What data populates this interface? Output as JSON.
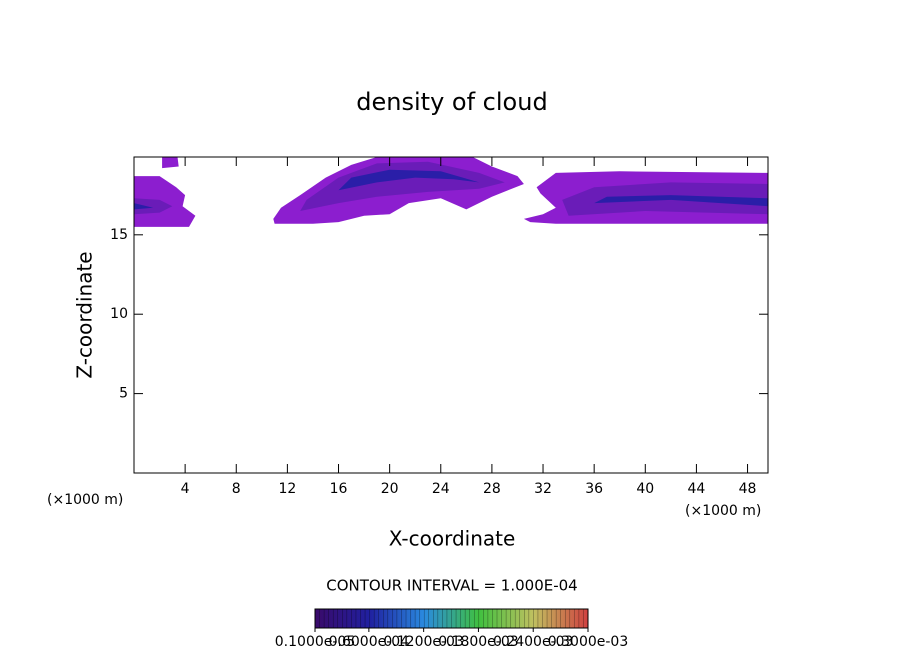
{
  "chart_data": {
    "type": "contour",
    "title": "density of cloud",
    "xlabel": "X-coordinate",
    "ylabel": "Z-coordinate",
    "x_unit": "(×1000 m)",
    "y_unit": "(×1000 m)",
    "xlim": [
      0,
      49.6
    ],
    "ylim": [
      0,
      19.9
    ],
    "xticks": [
      4,
      8,
      12,
      16,
      20,
      24,
      28,
      32,
      36,
      40,
      44,
      48
    ],
    "yticks": [
      5,
      10,
      15
    ],
    "regions": [
      {
        "color": "#8c1ecf",
        "x": [
          0,
          4.3,
          4.8,
          3.8,
          4,
          3.3,
          2,
          0
        ],
        "z": [
          15.5,
          15.5,
          16.2,
          16.8,
          17.5,
          18.0,
          18.7,
          18.7
        ]
      },
      {
        "color": "#6a1cb8",
        "x": [
          0,
          2,
          3,
          2,
          0
        ],
        "z": [
          16.3,
          16.4,
          16.8,
          17.2,
          17.3
        ]
      },
      {
        "color": "#2a1ea8",
        "x": [
          0,
          1.5,
          0
        ],
        "z": [
          16.6,
          16.7,
          17.0
        ]
      },
      {
        "color": "#8c1ecf",
        "x": [
          2.2,
          3.5,
          3.4,
          2.2
        ],
        "z": [
          19.2,
          19.3,
          19.9,
          19.9
        ]
      },
      {
        "color": "#8c1ecf",
        "x": [
          10.9,
          11,
          14,
          16,
          18,
          20,
          21.5,
          24,
          26,
          28,
          30.5,
          30,
          28,
          26.5,
          19,
          17,
          15,
          13,
          11.5
        ],
        "z": [
          16.0,
          15.7,
          15.7,
          15.8,
          16.2,
          16.3,
          17.0,
          17.3,
          16.6,
          17.4,
          18.2,
          18.7,
          19.3,
          19.9,
          19.9,
          19.4,
          18.6,
          17.5,
          16.7
        ]
      },
      {
        "color": "#6a1cb8",
        "x": [
          13,
          16,
          19,
          23,
          27,
          29,
          27,
          23,
          19,
          16,
          13.5
        ],
        "z": [
          16.5,
          17.0,
          17.4,
          17.7,
          17.9,
          18.3,
          18.9,
          19.6,
          19.5,
          18.6,
          17.2
        ]
      },
      {
        "color": "#2a1ea8",
        "x": [
          16,
          19,
          22,
          25,
          27,
          24,
          20,
          17
        ],
        "z": [
          17.8,
          18.3,
          18.6,
          18.5,
          18.3,
          19.0,
          19.1,
          18.6
        ]
      },
      {
        "color": "#8c1ecf",
        "x": [
          30.5,
          32,
          33,
          31.8,
          31.5,
          33,
          38,
          49.6,
          49.6,
          33,
          31
        ],
        "z": [
          16.0,
          16.3,
          16.7,
          17.6,
          18.0,
          18.9,
          19.0,
          18.9,
          15.7,
          15.7,
          15.8
        ]
      },
      {
        "color": "#6a1cb8",
        "x": [
          34,
          40,
          49.6,
          49.6,
          42,
          36,
          33.5
        ],
        "z": [
          16.2,
          16.5,
          16.3,
          18.2,
          18.3,
          18.0,
          17.2
        ]
      },
      {
        "color": "#2a1ea8",
        "x": [
          36,
          42,
          49.6,
          49.6,
          42,
          37
        ],
        "z": [
          17.0,
          17.2,
          16.8,
          17.3,
          17.5,
          17.4
        ]
      }
    ],
    "contour_interval_text": "CONTOUR INTERVAL = 1.000E-04",
    "colorbar": {
      "lim": [
        1e-06,
        0.0003
      ],
      "colors": [
        "#3a0a6a",
        "#2020a0",
        "#2a8adf",
        "#40c040",
        "#c0c060",
        "#d04040"
      ],
      "ticks": [
        {
          "value": 1e-06,
          "label": "0.1000e-05"
        },
        {
          "value": 6e-05,
          "label": "0.6000e-04"
        },
        {
          "value": 0.00012,
          "label": "0.1200e-03"
        },
        {
          "value": 0.00018,
          "label": "0.1800e-03"
        },
        {
          "value": 0.00024,
          "label": "0.2400e-03"
        },
        {
          "value": 0.0003,
          "label": "0.3000e-03"
        }
      ]
    }
  }
}
